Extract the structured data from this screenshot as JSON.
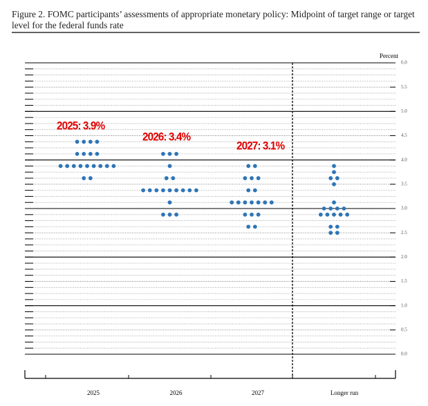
{
  "chart_data": {
    "type": "dot",
    "title": "Figure 2. FOMC participants’ assessments of appropriate monetary policy: Midpoint of target range or target level for the federal funds rate",
    "y_axis_label": "Percent",
    "categories": [
      "2025",
      "2026",
      "2027",
      "Longer run"
    ],
    "dots": [
      [
        4.375,
        4.375,
        4.375,
        4.375,
        4.125,
        4.125,
        4.125,
        4.125,
        3.875,
        3.875,
        3.875,
        3.875,
        3.875,
        3.875,
        3.875,
        3.875,
        3.875,
        3.625,
        3.625
      ],
      [
        4.125,
        4.125,
        4.125,
        3.875,
        3.625,
        3.625,
        3.375,
        3.375,
        3.375,
        3.375,
        3.375,
        3.375,
        3.375,
        3.375,
        3.375,
        3.125,
        2.875,
        2.875,
        2.875
      ],
      [
        3.875,
        3.875,
        3.625,
        3.625,
        3.625,
        3.375,
        3.375,
        3.125,
        3.125,
        3.125,
        3.125,
        3.125,
        3.125,
        3.125,
        2.875,
        2.875,
        2.875,
        2.625,
        2.625
      ],
      [
        3.875,
        3.75,
        3.625,
        3.625,
        3.5,
        3.125,
        3.0,
        3.0,
        3.0,
        3.0,
        2.875,
        2.875,
        2.875,
        2.875,
        2.875,
        2.625,
        2.625,
        2.5,
        2.5
      ]
    ],
    "color": "#2e75b6",
    "annotations": [
      "2025: 3.9%",
      "2026: 3.4%",
      "2027: 3.1%"
    ],
    "annotation_color": "#e00000",
    "ylim": [
      0,
      6
    ],
    "yticks": [
      {
        "value": 0,
        "label": "0.0"
      },
      0.5,
      {
        "value": 1,
        "label": "1.0"
      },
      1.5,
      {
        "value": 2,
        "label": "2.0"
      },
      2.5,
      {
        "value": 3,
        "label": "3.0"
      },
      3.5,
      {
        "value": 4,
        "label": "4.0"
      },
      4.5,
      {
        "value": 5,
        "label": "5.0"
      },
      5.5,
      {
        "value": 6,
        "label": "6.0"
      }
    ],
    "grid": true
  }
}
